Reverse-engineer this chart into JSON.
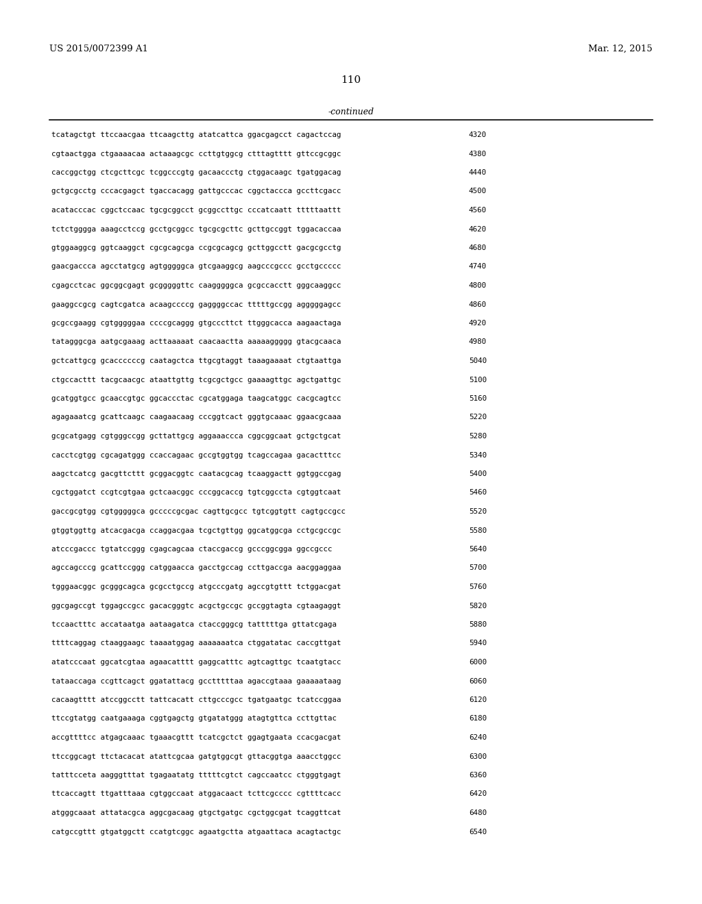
{
  "header_left": "US 2015/0072399 A1",
  "header_right": "Mar. 12, 2015",
  "page_number": "110",
  "continued_text": "-continued",
  "background_color": "#ffffff",
  "text_color": "#000000",
  "font_size_header": 9.5,
  "font_size_page": 11,
  "font_size_continued": 9,
  "font_size_sequence": 7.8,
  "sequence_lines": [
    [
      "tcatagctgt ttccaacgaa ttcaagcttg atatcattca ggacgagcct cagactccag",
      "4320"
    ],
    [
      "cgtaactgga ctgaaaacaa actaaagcgc ccttgtggcg ctttagtttt gttccgcggc",
      "4380"
    ],
    [
      "caccggctgg ctcgcttcgc tcggcccgtg gacaaccctg ctggacaagc tgatggacag",
      "4440"
    ],
    [
      "gctgcgcctg cccacgagct tgaccacagg gattgcccac cggctaccca gccttcgacc",
      "4500"
    ],
    [
      "acatacccac cggctccaac tgcgcggcct gcggccttgc cccatcaatt tttttaattt",
      "4560"
    ],
    [
      "tctctgggga aaagcctccg gcctgcggcc tgcgcgcttc gcttgccggt tggacaccaa",
      "4620"
    ],
    [
      "gtggaaggcg ggtcaaggct cgcgcagcga ccgcgcagcg gcttggcctt gacgcgcctg",
      "4680"
    ],
    [
      "gaacgaccca agcctatgcg agtgggggca gtcgaaggcg aagcccgccc gcctgccccc",
      "4740"
    ],
    [
      "cgagcctcac ggcggcgagt gcgggggttc caagggggca gcgccacctt gggcaaggcc",
      "4800"
    ],
    [
      "gaaggccgcg cagtcgatca acaagccccg gaggggccac tttttgccgg agggggagcc",
      "4860"
    ],
    [
      "gcgccgaagg cgtgggggaa ccccgcaggg gtgcccttct ttgggcacca aagaactaga",
      "4920"
    ],
    [
      "tatagggcga aatgcgaaag acttaaaaat caacaactta aaaaaggggg gtacgcaaca",
      "4980"
    ],
    [
      "gctcattgcg gcaccccccg caatagctca ttgcgtaggt taaagaaaat ctgtaattga",
      "5040"
    ],
    [
      "ctgccacttt tacgcaacgc ataattgttg tcgcgctgcc gaaaagttgc agctgattgc",
      "5100"
    ],
    [
      "gcatggtgcc gcaaccgtgc ggcaccctac cgcatggaga taagcatggc cacgcagtcc",
      "5160"
    ],
    [
      "agagaaatcg gcattcaagc caagaacaag cccggtcact gggtgcaaac ggaacgcaaa",
      "5220"
    ],
    [
      "gcgcatgagg cgtgggccgg gcttattgcg aggaaaccca cggcggcaat gctgctgcat",
      "5280"
    ],
    [
      "cacctcgtgg cgcagatggg ccaccagaac gccgtggtgg tcagccagaa gacactttcc",
      "5340"
    ],
    [
      "aagctcatcg gacgttcttt gcggacggtc caatacgcag tcaaggactt ggtggccgag",
      "5400"
    ],
    [
      "cgctggatct ccgtcgtgaa gctcaacggc cccggcaccg tgtcggccta cgtggtcaat",
      "5460"
    ],
    [
      "gaccgcgtgg cgtgggggca gcccccgcgac cagttgcgcc tgtcggtgtt cagtgccgcc",
      "5520"
    ],
    [
      "gtggtggttg atcacgacga ccaggacgaa tcgctgttgg ggcatggcga cctgcgccgc",
      "5580"
    ],
    [
      "atcccgaccc tgtatccggg cgagcagcaa ctaccgaccg gcccggcgga ggccgccc",
      "5640"
    ],
    [
      "agccagcccg gcattccggg catggaacca gacctgccag ccttgaccga aacggaggaa",
      "5700"
    ],
    [
      "tgggaacggc gcgggcagca gcgcctgccg atgcccgatg agccgtgttt tctggacgat",
      "5760"
    ],
    [
      "ggcgagccgt tggagccgcc gacacgggtc acgctgccgc gccggtagta cgtaagaggt",
      "5820"
    ],
    [
      "tccaactttc accataatga aataagatca ctaccgggcg tatttttga gttatcgaga",
      "5880"
    ],
    [
      "ttttcaggag ctaaggaagc taaaatggag aaaaaaatca ctggatatac caccgttgat",
      "5940"
    ],
    [
      "atatcccaat ggcatcgtaa agaacatttt gaggcatttc agtcagttgc tcaatgtacc",
      "6000"
    ],
    [
      "tataaccaga ccgttcagct ggatattacg gcctttttaa agaccgtaaa gaaaaataag",
      "6060"
    ],
    [
      "cacaagtttt atccggcctt tattcacatt cttgcccgcc tgatgaatgc tcatccggaa",
      "6120"
    ],
    [
      "ttccgtatgg caatgaaaga cggtgagctg gtgatatggg atagtgttca ccttgttac",
      "6180"
    ],
    [
      "accgttttcc atgagcaaac tgaaacgttt tcatcgctct ggagtgaata ccacgacgat",
      "6240"
    ],
    [
      "ttccggcagt ttctacacat atattcgcaa gatgtggcgt gttacggtga aaacctggcc",
      "6300"
    ],
    [
      "tatttcceta aagggtttat tgagaatatg tttttcgtct cagccaatcc ctgggtgagt",
      "6360"
    ],
    [
      "ttcaccagtt ttgatttaaa cgtggccaat atggacaact tcttcgcccc cgttttcacc",
      "6420"
    ],
    [
      "atgggcaaat attatacgca aggcgacaag gtgctgatgc cgctggcgat tcaggttcat",
      "6480"
    ],
    [
      "catgccgttt gtgatggctt ccatgtcggc agaatgctta atgaattaca acagtactgc",
      "6540"
    ]
  ]
}
